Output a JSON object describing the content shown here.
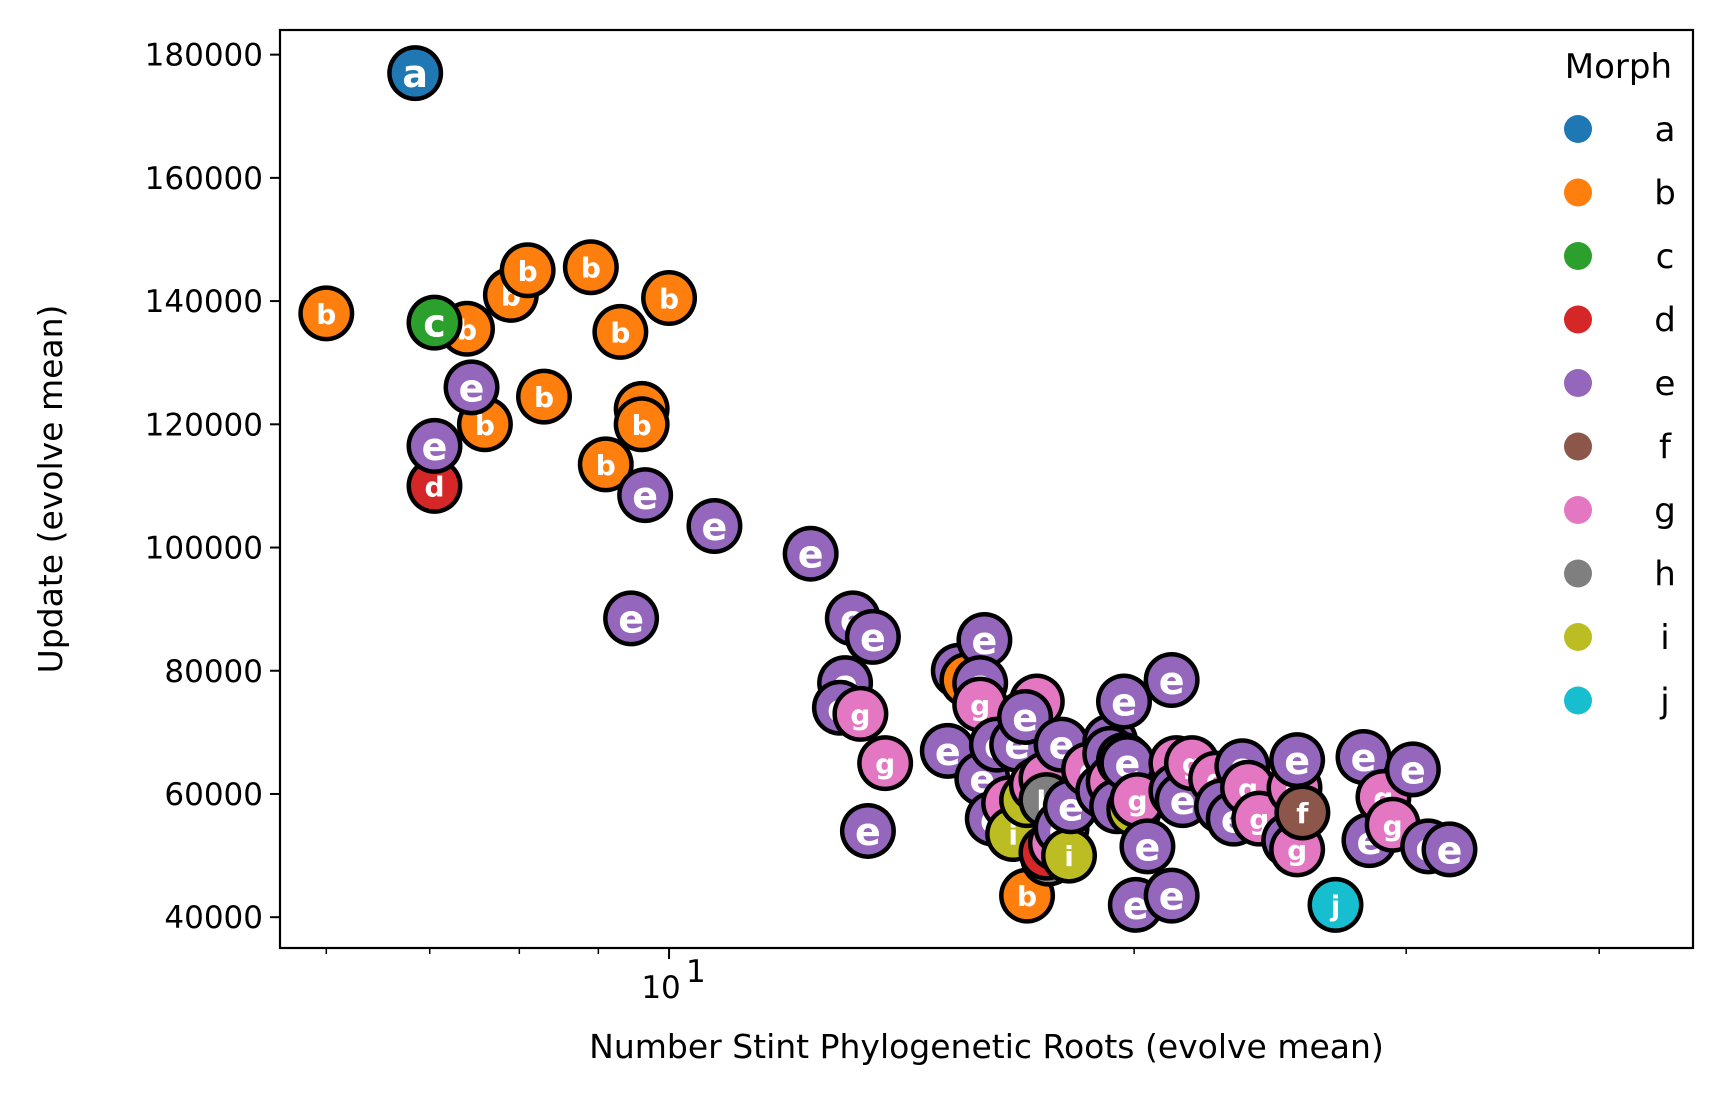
{
  "chart_data": {
    "type": "scatter",
    "xlabel": "Number Stint Phylogenetic Roots (evolve mean)",
    "ylabel": "Update (evolve mean)",
    "x_scale": "log",
    "xlim": [
      5.6,
      46
    ],
    "ylim": [
      35000,
      184000
    ],
    "x_major_ticks": [
      {
        "value": 10,
        "label": "10",
        "exp": "1"
      }
    ],
    "x_minor_ticks": [
      6,
      7,
      8,
      9,
      20,
      30,
      40
    ],
    "y_ticks": [
      40000,
      60000,
      80000,
      100000,
      120000,
      140000,
      160000,
      180000
    ],
    "y_tick_labels": [
      "40000",
      "60000",
      "80000",
      "100000",
      "120000",
      "140000",
      "160000",
      "180000"
    ],
    "legend": {
      "title": "Morph",
      "position": "right",
      "entries": [
        {
          "label": "a",
          "color": "#1f77b4"
        },
        {
          "label": "b",
          "color": "#ff7f0e"
        },
        {
          "label": "c",
          "color": "#2ca02c"
        },
        {
          "label": "d",
          "color": "#d62728"
        },
        {
          "label": "e",
          "color": "#9467bd"
        },
        {
          "label": "f",
          "color": "#8c564b"
        },
        {
          "label": "g",
          "color": "#e377c2"
        },
        {
          "label": "h",
          "color": "#7f7f7f"
        },
        {
          "label": "i",
          "color": "#bcbd22"
        },
        {
          "label": "j",
          "color": "#17becf"
        }
      ]
    },
    "points": [
      {
        "m": "a",
        "x": 6.85,
        "y": 177000
      },
      {
        "m": "b",
        "x": 6.0,
        "y": 138000
      },
      {
        "m": "b",
        "x": 7.4,
        "y": 135500
      },
      {
        "m": "b",
        "x": 7.9,
        "y": 141000
      },
      {
        "m": "b",
        "x": 8.1,
        "y": 145000
      },
      {
        "m": "b",
        "x": 8.9,
        "y": 145500
      },
      {
        "m": "b",
        "x": 9.3,
        "y": 135000
      },
      {
        "m": "b",
        "x": 10.0,
        "y": 140500
      },
      {
        "m": "b",
        "x": 8.3,
        "y": 124500
      },
      {
        "m": "b",
        "x": 7.6,
        "y": 120000
      },
      {
        "m": "b",
        "x": 9.6,
        "y": 122500
      },
      {
        "m": "b",
        "x": 9.6,
        "y": 120000
      },
      {
        "m": "b",
        "x": 9.1,
        "y": 113500
      },
      {
        "m": "c",
        "x": 7.05,
        "y": 136500
      },
      {
        "m": "d",
        "x": 7.05,
        "y": 110000
      },
      {
        "m": "e",
        "x": 7.05,
        "y": 116500
      },
      {
        "m": "e",
        "x": 7.45,
        "y": 126000
      },
      {
        "m": "e",
        "x": 9.65,
        "y": 108500
      },
      {
        "m": "e",
        "x": 9.45,
        "y": 88500
      },
      {
        "m": "e",
        "x": 10.7,
        "y": 103500
      },
      {
        "m": "e",
        "x": 12.35,
        "y": 99000
      },
      {
        "m": "e",
        "x": 13.15,
        "y": 88500
      },
      {
        "m": "e",
        "x": 13.55,
        "y": 85500
      },
      {
        "m": "e",
        "x": 13.0,
        "y": 78000
      },
      {
        "m": "e",
        "x": 12.9,
        "y": 74000
      },
      {
        "m": "g",
        "x": 13.3,
        "y": 73000
      },
      {
        "m": "g",
        "x": 13.8,
        "y": 65000
      },
      {
        "m": "e",
        "x": 13.45,
        "y": 54000
      },
      {
        "m": "e",
        "x": 15.15,
        "y": 67000
      },
      {
        "m": "e",
        "x": 15.4,
        "y": 80000
      },
      {
        "m": "b",
        "x": 15.6,
        "y": 78500
      },
      {
        "m": "e",
        "x": 16.0,
        "y": 85000
      },
      {
        "m": "e",
        "x": 15.9,
        "y": 78000
      },
      {
        "m": "g",
        "x": 15.9,
        "y": 74500
      },
      {
        "m": "e",
        "x": 15.95,
        "y": 62500
      },
      {
        "m": "e",
        "x": 16.2,
        "y": 56000
      },
      {
        "m": "e",
        "x": 16.3,
        "y": 68000
      },
      {
        "m": "e",
        "x": 16.8,
        "y": 68000
      },
      {
        "m": "g",
        "x": 17.3,
        "y": 75000
      },
      {
        "m": "e",
        "x": 17.0,
        "y": 72500
      },
      {
        "m": "g",
        "x": 16.6,
        "y": 58500
      },
      {
        "m": "i",
        "x": 16.7,
        "y": 53500
      },
      {
        "m": "i",
        "x": 17.05,
        "y": 59000
      },
      {
        "m": "g",
        "x": 17.3,
        "y": 61500
      },
      {
        "m": "g",
        "x": 17.55,
        "y": 62500
      },
      {
        "m": "h",
        "x": 17.55,
        "y": 59000
      },
      {
        "m": "b",
        "x": 17.05,
        "y": 43500
      },
      {
        "m": "h",
        "x": 17.6,
        "y": 49500
      },
      {
        "m": "d",
        "x": 17.55,
        "y": 50500
      },
      {
        "m": "g",
        "x": 17.8,
        "y": 52000
      },
      {
        "m": "e",
        "x": 17.95,
        "y": 54500
      },
      {
        "m": "i",
        "x": 18.15,
        "y": 50000
      },
      {
        "m": "e",
        "x": 17.95,
        "y": 68000
      },
      {
        "m": "e",
        "x": 18.2,
        "y": 58000
      },
      {
        "m": "g",
        "x": 18.7,
        "y": 64000
      },
      {
        "m": "e",
        "x": 19.1,
        "y": 60500
      },
      {
        "m": "e",
        "x": 19.3,
        "y": 68500
      },
      {
        "m": "e",
        "x": 19.3,
        "y": 66500
      },
      {
        "m": "g",
        "x": 19.4,
        "y": 62000
      },
      {
        "m": "e",
        "x": 19.5,
        "y": 58000
      },
      {
        "m": "g",
        "x": 19.7,
        "y": 65500
      },
      {
        "m": "e",
        "x": 19.8,
        "y": 65000
      },
      {
        "m": "e",
        "x": 19.7,
        "y": 75000
      },
      {
        "m": "i",
        "x": 20.0,
        "y": 57500
      },
      {
        "m": "g",
        "x": 20.1,
        "y": 59000
      },
      {
        "m": "e",
        "x": 20.05,
        "y": 42000
      },
      {
        "m": "e",
        "x": 20.4,
        "y": 51500
      },
      {
        "m": "e",
        "x": 21.15,
        "y": 78500
      },
      {
        "m": "e",
        "x": 21.15,
        "y": 43500
      },
      {
        "m": "g",
        "x": 21.3,
        "y": 65000
      },
      {
        "m": "e",
        "x": 21.3,
        "y": 60500
      },
      {
        "m": "e",
        "x": 21.5,
        "y": 59000
      },
      {
        "m": "g",
        "x": 21.8,
        "y": 65000
      },
      {
        "m": "g",
        "x": 22.6,
        "y": 62500
      },
      {
        "m": "e",
        "x": 22.8,
        "y": 58000
      },
      {
        "m": "e",
        "x": 23.5,
        "y": 64500
      },
      {
        "m": "e",
        "x": 23.2,
        "y": 56000
      },
      {
        "m": "g",
        "x": 23.7,
        "y": 61000
      },
      {
        "m": "g",
        "x": 24.1,
        "y": 56000
      },
      {
        "m": "g",
        "x": 25.4,
        "y": 61000
      },
      {
        "m": "e",
        "x": 25.5,
        "y": 65500
      },
      {
        "m": "e",
        "x": 25.2,
        "y": 52500
      },
      {
        "m": "g",
        "x": 25.5,
        "y": 51000
      },
      {
        "m": "f",
        "x": 25.7,
        "y": 57000
      },
      {
        "m": "j",
        "x": 27.0,
        "y": 42000
      },
      {
        "m": "e",
        "x": 28.15,
        "y": 66000
      },
      {
        "m": "e",
        "x": 28.4,
        "y": 52500
      },
      {
        "m": "g",
        "x": 29.0,
        "y": 59500
      },
      {
        "m": "g",
        "x": 29.4,
        "y": 55000
      },
      {
        "m": "e",
        "x": 30.3,
        "y": 64000
      },
      {
        "m": "e",
        "x": 31.0,
        "y": 51500
      },
      {
        "m": "e",
        "x": 32.0,
        "y": 51000
      }
    ]
  }
}
